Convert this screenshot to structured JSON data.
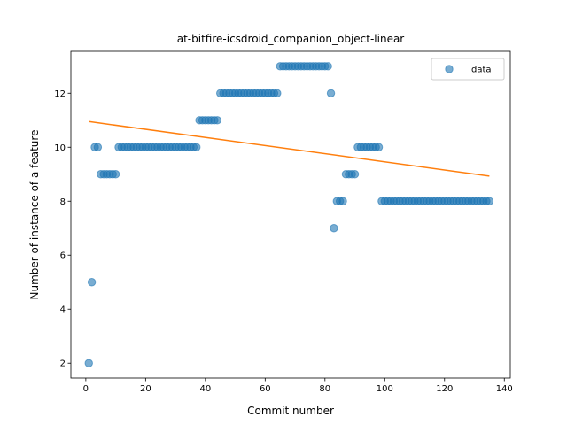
{
  "chart_data": {
    "type": "scatter",
    "title": "at-bitfire-icsdroid_companion_object-linear",
    "xlabel": "Commit number",
    "ylabel": "Number of instance of a feature",
    "xlim": [
      -5,
      142
    ],
    "ylim": [
      1.45,
      13.55
    ],
    "xticks": [
      0,
      20,
      40,
      60,
      80,
      100,
      120,
      140
    ],
    "yticks": [
      2,
      4,
      6,
      8,
      10,
      12
    ],
    "grid": false,
    "legend_position": "top-right",
    "series": [
      {
        "name": "data",
        "kind": "scatter",
        "color": "#1f77b4",
        "x": [
          1,
          2,
          3,
          4,
          5,
          6,
          7,
          8,
          9,
          10,
          11,
          12,
          13,
          14,
          15,
          16,
          17,
          18,
          19,
          20,
          21,
          22,
          23,
          24,
          25,
          26,
          27,
          28,
          29,
          30,
          31,
          32,
          33,
          34,
          35,
          36,
          37,
          38,
          39,
          40,
          41,
          42,
          43,
          44,
          45,
          46,
          47,
          48,
          49,
          50,
          51,
          52,
          53,
          54,
          55,
          56,
          57,
          58,
          59,
          60,
          61,
          62,
          63,
          64,
          65,
          66,
          67,
          68,
          69,
          70,
          71,
          72,
          73,
          74,
          75,
          76,
          77,
          78,
          79,
          80,
          81,
          82,
          83,
          84,
          85,
          86,
          87,
          88,
          89,
          90,
          91,
          92,
          93,
          94,
          95,
          96,
          97,
          98,
          99,
          100,
          101,
          102,
          103,
          104,
          105,
          106,
          107,
          108,
          109,
          110,
          111,
          112,
          113,
          114,
          115,
          116,
          117,
          118,
          119,
          120,
          121,
          122,
          123,
          124,
          125,
          126,
          127,
          128,
          129,
          130,
          131,
          132,
          133,
          134,
          135
        ],
        "y": [
          2,
          5,
          10,
          10,
          9,
          9,
          9,
          9,
          9,
          9,
          10,
          10,
          10,
          10,
          10,
          10,
          10,
          10,
          10,
          10,
          10,
          10,
          10,
          10,
          10,
          10,
          10,
          10,
          10,
          10,
          10,
          10,
          10,
          10,
          10,
          10,
          10,
          11,
          11,
          11,
          11,
          11,
          11,
          11,
          12,
          12,
          12,
          12,
          12,
          12,
          12,
          12,
          12,
          12,
          12,
          12,
          12,
          12,
          12,
          12,
          12,
          12,
          12,
          12,
          13,
          13,
          13,
          13,
          13,
          13,
          13,
          13,
          13,
          13,
          13,
          13,
          13,
          13,
          13,
          13,
          13,
          12,
          7,
          8,
          8,
          8,
          9,
          9,
          9,
          9,
          10,
          10,
          10,
          10,
          10,
          10,
          10,
          10,
          8,
          8,
          8,
          8,
          8,
          8,
          8,
          8,
          8,
          8,
          8,
          8,
          8,
          8,
          8,
          8,
          8,
          8,
          8,
          8,
          8,
          8,
          8,
          8,
          8,
          8,
          8,
          8,
          8,
          8,
          8,
          8,
          8,
          8,
          8,
          8,
          8
        ]
      },
      {
        "name": "",
        "kind": "line",
        "color": "#ff7f0e",
        "x": [
          1,
          135
        ],
        "y": [
          10.95,
          8.93
        ]
      }
    ]
  }
}
